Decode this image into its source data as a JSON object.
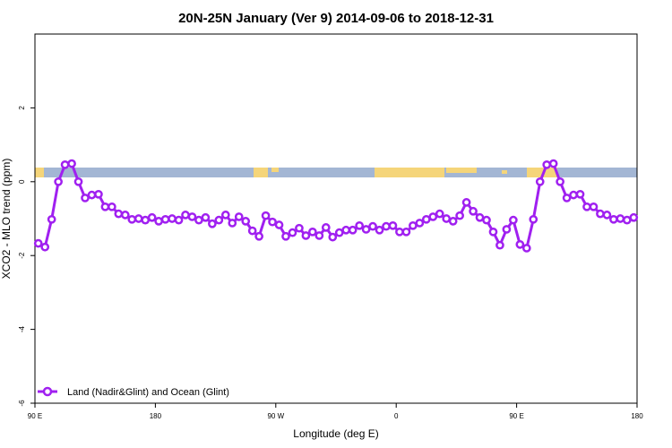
{
  "chart_data": {
    "type": "line",
    "title": "20N-25N January (Ver 9)   2014-09-06 to 2018-12-31",
    "x_label": "Longitude (deg E)",
    "y_label": "XCO2 - MLO trend (ppm)",
    "x": [
      92.5,
      97.5,
      102.5,
      107.5,
      112.5,
      117.5,
      122.5,
      127.5,
      132.5,
      137.5,
      142.5,
      147.5,
      152.5,
      157.5,
      162.5,
      167.5,
      172.5,
      177.5,
      182.5,
      187.5,
      192.5,
      197.5,
      202.5,
      207.5,
      212.5,
      217.5,
      222.5,
      227.5,
      232.5,
      237.5,
      242.5,
      247.5,
      252.5,
      257.5,
      262.5,
      267.5,
      272.5,
      277.5,
      282.5,
      287.5,
      292.5,
      297.5,
      302.5,
      307.5,
      312.5,
      317.5,
      322.5,
      327.5,
      332.5,
      337.5,
      342.5,
      347.5,
      352.5,
      357.5,
      362.5,
      367.5,
      372.5,
      377.5,
      382.5,
      387.5,
      392.5,
      397.5,
      402.5,
      407.5,
      412.5,
      417.5,
      422.5,
      427.5,
      432.5,
      437.5,
      442.5,
      447.5,
      452.5,
      457.5,
      462.5,
      467.5,
      472.5,
      477.5,
      482.5,
      487.5,
      492.5,
      497.5,
      502.5,
      507.5,
      512.5,
      517.5,
      522.5,
      527.5,
      532.5,
      537.5
    ],
    "series": [
      {
        "name": "Land (Nadir&Glint) and Ocean (Glint)",
        "color": "#a020f0",
        "values": [
          -1.67,
          -1.77,
          -1.02,
          0.0,
          0.46,
          0.49,
          0.0,
          -0.44,
          -0.36,
          -0.34,
          -0.68,
          -0.68,
          -0.87,
          -0.9,
          -1.02,
          -1.0,
          -1.04,
          -0.97,
          -1.07,
          -1.02,
          -1.0,
          -1.04,
          -0.9,
          -0.95,
          -1.04,
          -0.97,
          -1.14,
          -1.04,
          -0.9,
          -1.12,
          -0.95,
          -1.07,
          -1.33,
          -1.48,
          -0.92,
          -1.09,
          -1.17,
          -1.48,
          -1.38,
          -1.26,
          -1.46,
          -1.36,
          -1.46,
          -1.24,
          -1.5,
          -1.38,
          -1.31,
          -1.31,
          -1.19,
          -1.29,
          -1.21,
          -1.31,
          -1.21,
          -1.19,
          -1.36,
          -1.36,
          -1.19,
          -1.12,
          -1.02,
          -0.95,
          -0.87,
          -1.0,
          -1.07,
          -0.92,
          -0.56,
          -0.8,
          -0.97,
          -1.04,
          -1.36,
          -1.72,
          -1.29,
          -1.04,
          -1.7,
          -1.8,
          -1.02,
          0.0,
          0.46,
          0.49,
          0.0,
          -0.44,
          -0.36,
          -0.34,
          -0.68,
          -0.68,
          -0.87,
          -0.9,
          -1.02,
          -1.0,
          -1.04,
          -0.97
        ]
      }
    ],
    "xlim": [
      90,
      540
    ],
    "xticks": [
      {
        "value": 90,
        "label": "90 E"
      },
      180,
      {
        "value": 270,
        "label": "90 W"
      },
      {
        "value": 360,
        "label": "0"
      },
      {
        "value": 450,
        "label": "90 E"
      },
      {
        "value": 540,
        "label": "180"
      }
    ],
    "ylim": [
      -6,
      4
    ],
    "yticks": [
      -6,
      -4,
      -2,
      0,
      2
    ],
    "legend": "bottom-left"
  }
}
